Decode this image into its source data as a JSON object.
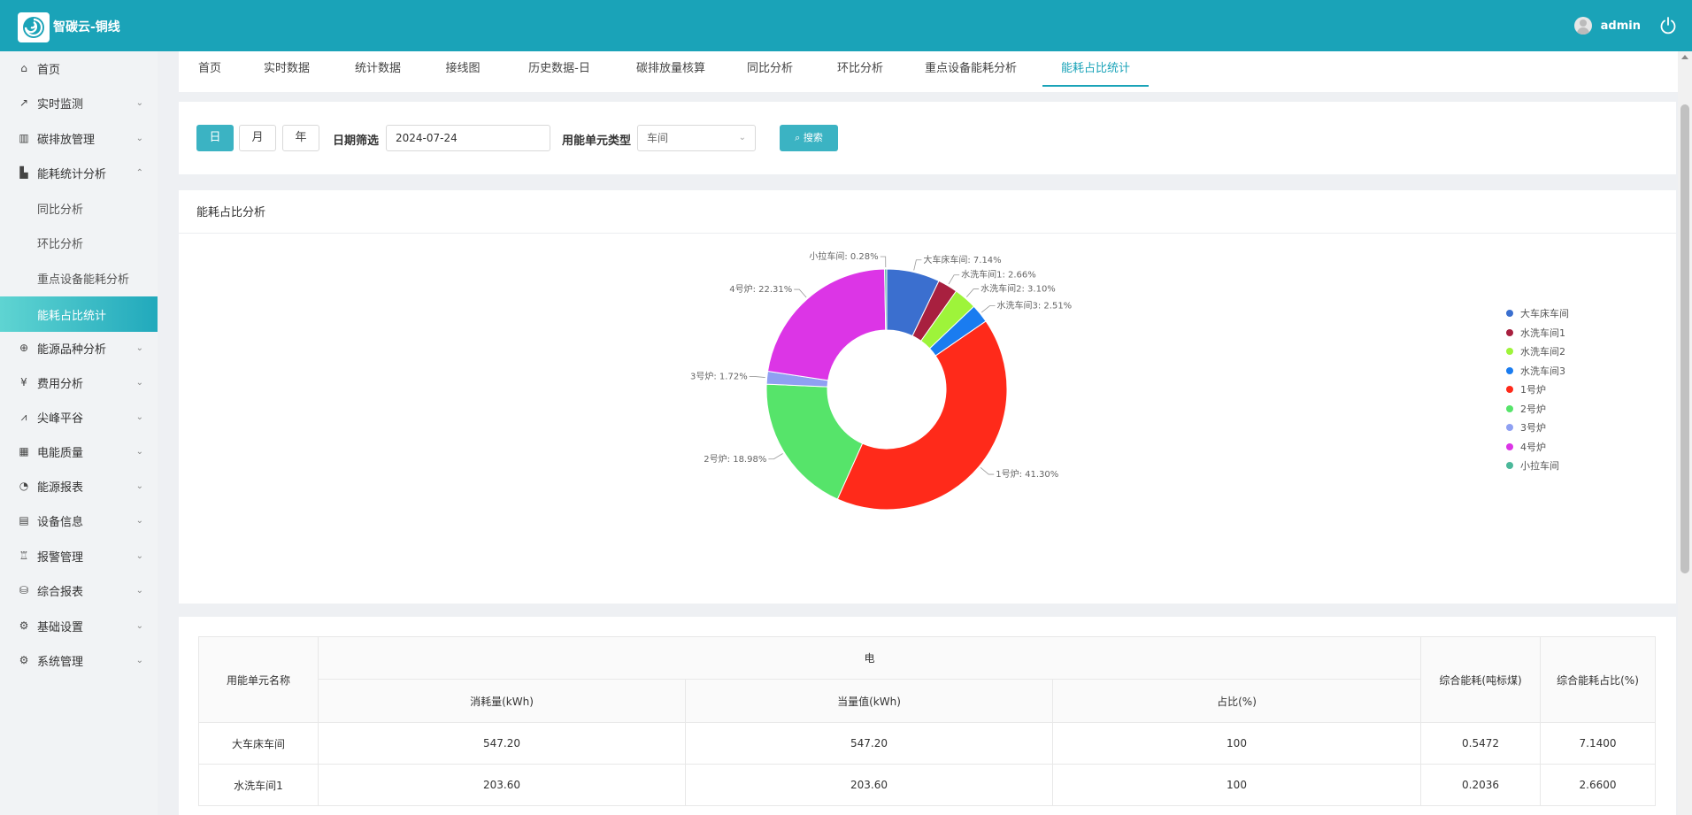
{
  "header": {
    "app_title": "智碳云-铜线",
    "user": "admin"
  },
  "sidebar": {
    "items": [
      {
        "label": "首页",
        "icon": "home-icon"
      },
      {
        "label": "实时监测",
        "icon": "trend-icon"
      },
      {
        "label": "碳排放管理",
        "icon": "bar-chart-icon"
      },
      {
        "label": "能耗统计分析",
        "icon": "stats-icon"
      },
      {
        "label": "能源品种分析",
        "icon": "energy-icon"
      },
      {
        "label": "费用分析",
        "icon": "yen-icon"
      },
      {
        "label": "尖峰平谷",
        "icon": "line-chart-icon"
      },
      {
        "label": "电能质量",
        "icon": "calendar-icon"
      },
      {
        "label": "能源报表",
        "icon": "pie-icon"
      },
      {
        "label": "设备信息",
        "icon": "document-icon"
      },
      {
        "label": "报警管理",
        "icon": "alarm-icon"
      },
      {
        "label": "综合报表",
        "icon": "report-icon"
      },
      {
        "label": "基础设置",
        "icon": "settings-icon"
      },
      {
        "label": "系统管理",
        "icon": "system-icon"
      }
    ],
    "subitems": [
      {
        "label": "同比分析"
      },
      {
        "label": "环比分析"
      },
      {
        "label": "重点设备能耗分析"
      },
      {
        "label": "能耗占比统计"
      }
    ]
  },
  "tabs": [
    "首页",
    "实时数据",
    "统计数据",
    "接线图",
    "历史数据-日",
    "碳排放量核算",
    "同比分析",
    "环比分析",
    "重点设备能耗分析",
    "能耗占比统计"
  ],
  "filter": {
    "period_buttons": [
      "日",
      "月",
      "年"
    ],
    "date_label": "日期筛选",
    "date_value": "2024-07-24",
    "unit_type_label": "用能单元类型",
    "unit_type_value": "车间",
    "search_label": "搜索"
  },
  "chart_panel_title": "能耗占比分析",
  "chart_data": {
    "type": "pie",
    "categories": [
      "大车床车间",
      "水洗车间1",
      "水洗车间2",
      "水洗车间3",
      "1号炉",
      "2号炉",
      "3号炉",
      "4号炉",
      "小拉车间"
    ],
    "values": [
      7.14,
      2.66,
      3.1,
      2.51,
      41.3,
      18.98,
      1.72,
      22.31,
      0.28
    ],
    "labels": [
      "大车床车间: 7.14%",
      "水洗车间1: 2.66%",
      "水洗车间2: 3.10%",
      "水洗车间3: 2.51%",
      "1号炉: 41.30%",
      "2号炉: 18.98%",
      "3号炉: 1.72%",
      "4号炉: 22.31%",
      "小拉车间: 0.28%"
    ],
    "colors": [
      "#3b6fcf",
      "#a8203f",
      "#9ef43a",
      "#1a7cf0",
      "#ff2a1a",
      "#56e46a",
      "#8fa0f2",
      "#dc35e6",
      "#4bb89a"
    ],
    "legend": "right"
  },
  "table": {
    "col_name": "用能单元名称",
    "group_header": "电",
    "sub_headers": [
      "消耗量(kWh)",
      "当量值(kWh)",
      "占比(%)"
    ],
    "col_total": "综合能耗(吨标煤)",
    "col_total_ratio": "综合能耗占比(%)",
    "rows": [
      [
        "大车床车间",
        "547.20",
        "547.20",
        "100",
        "0.5472",
        "7.1400"
      ],
      [
        "水洗车间1",
        "203.60",
        "203.60",
        "100",
        "0.2036",
        "2.6600"
      ]
    ]
  }
}
